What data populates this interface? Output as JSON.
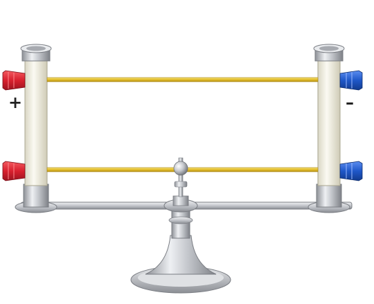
{
  "labels": {
    "positive": "+",
    "negative": "–"
  },
  "colors": {
    "positive_terminal": "#d8202e",
    "negative_terminal": "#1f57c8",
    "rail": "#e8c234",
    "metal": "#b9bcc2",
    "insulator": "#f3f1e4"
  }
}
